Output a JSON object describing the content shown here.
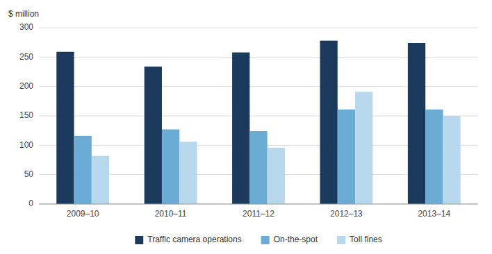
{
  "chart_data": {
    "type": "bar",
    "ylabel": "$ million",
    "categories": [
      "2009–10",
      "2010–11",
      "2011–12",
      "2012–13",
      "2013–14"
    ],
    "series": [
      {
        "name": "Traffic camera operations",
        "color": "#1b3a5c",
        "values": [
          259,
          234,
          258,
          278,
          274
        ]
      },
      {
        "name": "On-the-spot",
        "color": "#6bacd4",
        "values": [
          116,
          127,
          124,
          161,
          161
        ]
      },
      {
        "name": "Toll fines",
        "color": "#b8d9ed",
        "values": [
          82,
          106,
          96,
          191,
          150
        ]
      }
    ],
    "ylim": [
      0,
      300
    ],
    "yticks": [
      0,
      50,
      100,
      150,
      200,
      250,
      300
    ],
    "grid": true,
    "legend": "bottom"
  }
}
